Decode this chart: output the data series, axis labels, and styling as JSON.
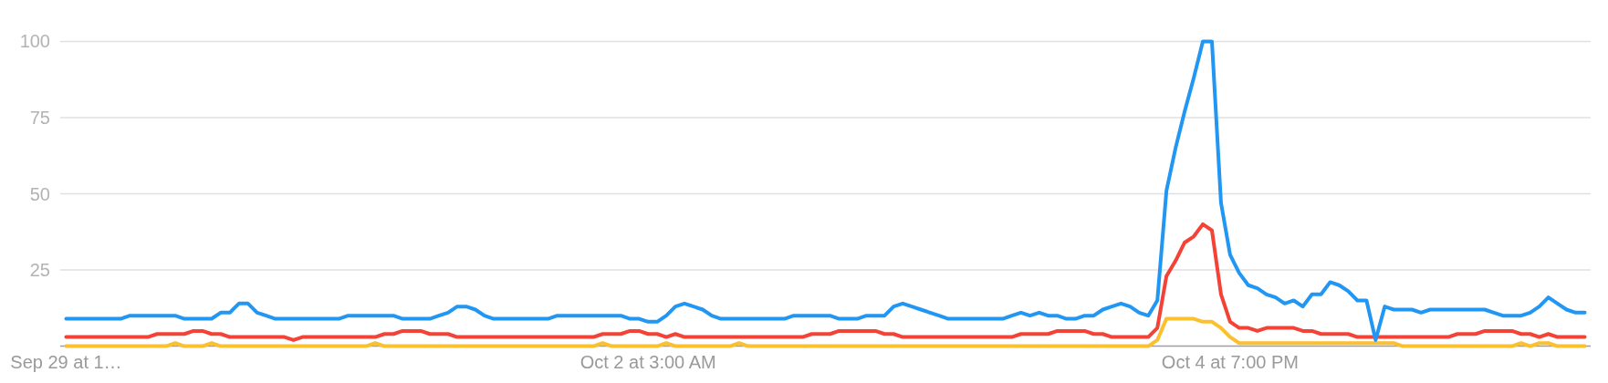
{
  "chart_data": {
    "type": "line",
    "categories": [
      "Sep 29 at 1…",
      null,
      null,
      null,
      null,
      null,
      null,
      null,
      null,
      null,
      null,
      null,
      null,
      null,
      null,
      null,
      null,
      null,
      null,
      null,
      null,
      null,
      null,
      null,
      null,
      null,
      null,
      null,
      null,
      null,
      null,
      null,
      null,
      null,
      null,
      null,
      null,
      null,
      null,
      null,
      null,
      null,
      null,
      null,
      null,
      null,
      null,
      null,
      null,
      null,
      null,
      null,
      null,
      null,
      null,
      null,
      null,
      null,
      null,
      null,
      null,
      null,
      null,
      null,
      "Oct 2 at 3:00 AM",
      null,
      null,
      null,
      null,
      null,
      null,
      null,
      null,
      null,
      null,
      null,
      null,
      null,
      null,
      null,
      null,
      null,
      null,
      null,
      null,
      null,
      null,
      null,
      null,
      null,
      null,
      null,
      null,
      null,
      null,
      null,
      null,
      null,
      null,
      null,
      null,
      null,
      null,
      null,
      null,
      null,
      null,
      null,
      null,
      null,
      null,
      null,
      null,
      null,
      null,
      null,
      null,
      null,
      null,
      null,
      null,
      null,
      null,
      null,
      null,
      null,
      null,
      null,
      "Oct 4 at 7:00 PM",
      null,
      null,
      null,
      null,
      null,
      null,
      null,
      null,
      null,
      null,
      null,
      null,
      null,
      null,
      null,
      null,
      null,
      null,
      null,
      null,
      null,
      null,
      null,
      null,
      null,
      null,
      null,
      null,
      null,
      null,
      null,
      null,
      null,
      null,
      null,
      null,
      null,
      null,
      null
    ],
    "series": [
      {
        "color": "#2196f3",
        "values": [
          9,
          9,
          9,
          9,
          9,
          9,
          9,
          10,
          10,
          10,
          10,
          10,
          10,
          9,
          9,
          9,
          9,
          11,
          11,
          14,
          14,
          11,
          10,
          9,
          9,
          9,
          9,
          9,
          9,
          9,
          9,
          10,
          10,
          10,
          10,
          10,
          10,
          9,
          9,
          9,
          9,
          10,
          11,
          13,
          13,
          12,
          10,
          9,
          9,
          9,
          9,
          9,
          9,
          9,
          10,
          10,
          10,
          10,
          10,
          10,
          10,
          10,
          9,
          9,
          8,
          8,
          10,
          13,
          14,
          13,
          12,
          10,
          9,
          9,
          9,
          9,
          9,
          9,
          9,
          9,
          10,
          10,
          10,
          10,
          10,
          9,
          9,
          9,
          10,
          10,
          10,
          13,
          14,
          13,
          12,
          11,
          10,
          9,
          9,
          9,
          9,
          9,
          9,
          9,
          10,
          11,
          10,
          11,
          10,
          10,
          9,
          9,
          10,
          10,
          12,
          13,
          14,
          13,
          11,
          10,
          15,
          51,
          65,
          77,
          88,
          100,
          100,
          47,
          30,
          24,
          20,
          19,
          17,
          16,
          14,
          15,
          13,
          17,
          17,
          21,
          20,
          18,
          15,
          15,
          2,
          13,
          12,
          12,
          12,
          11,
          12,
          12,
          12,
          12,
          12,
          12,
          12,
          11,
          10,
          10,
          10,
          11,
          13,
          16,
          14,
          12,
          11,
          11
        ]
      },
      {
        "color": "#f44336",
        "values": [
          3,
          3,
          3,
          3,
          3,
          3,
          3,
          3,
          3,
          3,
          4,
          4,
          4,
          4,
          5,
          5,
          4,
          4,
          3,
          3,
          3,
          3,
          3,
          3,
          3,
          2,
          3,
          3,
          3,
          3,
          3,
          3,
          3,
          3,
          3,
          4,
          4,
          5,
          5,
          5,
          4,
          4,
          4,
          3,
          3,
          3,
          3,
          3,
          3,
          3,
          3,
          3,
          3,
          3,
          3,
          3,
          3,
          3,
          3,
          4,
          4,
          4,
          5,
          5,
          4,
          4,
          3,
          4,
          3,
          3,
          3,
          3,
          3,
          3,
          3,
          3,
          3,
          3,
          3,
          3,
          3,
          3,
          4,
          4,
          4,
          5,
          5,
          5,
          5,
          5,
          4,
          4,
          3,
          3,
          3,
          3,
          3,
          3,
          3,
          3,
          3,
          3,
          3,
          3,
          3,
          4,
          4,
          4,
          4,
          5,
          5,
          5,
          5,
          4,
          4,
          3,
          3,
          3,
          3,
          3,
          6,
          23,
          28,
          34,
          36,
          40,
          38,
          17,
          8,
          6,
          6,
          5,
          6,
          6,
          6,
          6,
          5,
          5,
          4,
          4,
          4,
          4,
          3,
          3,
          3,
          3,
          3,
          3,
          3,
          3,
          3,
          3,
          3,
          4,
          4,
          4,
          5,
          5,
          5,
          5,
          4,
          4,
          3,
          4,
          3,
          3,
          3,
          3
        ]
      },
      {
        "color": "#fbc02d",
        "values": [
          0,
          0,
          0,
          0,
          0,
          0,
          0,
          0,
          0,
          0,
          0,
          0,
          1,
          0,
          0,
          0,
          1,
          0,
          0,
          0,
          0,
          0,
          0,
          0,
          0,
          0,
          0,
          0,
          0,
          0,
          0,
          0,
          0,
          0,
          1,
          0,
          0,
          0,
          0,
          0,
          0,
          0,
          0,
          0,
          0,
          0,
          0,
          0,
          0,
          0,
          0,
          0,
          0,
          0,
          0,
          0,
          0,
          0,
          0,
          1,
          0,
          0,
          0,
          0,
          0,
          0,
          1,
          0,
          0,
          0,
          0,
          0,
          0,
          0,
          1,
          0,
          0,
          0,
          0,
          0,
          0,
          0,
          0,
          0,
          0,
          0,
          0,
          0,
          0,
          0,
          0,
          0,
          0,
          0,
          0,
          0,
          0,
          0,
          0,
          0,
          0,
          0,
          0,
          0,
          0,
          0,
          0,
          0,
          0,
          0,
          0,
          0,
          0,
          0,
          0,
          0,
          0,
          0,
          0,
          0,
          2,
          9,
          9,
          9,
          9,
          8,
          8,
          6,
          3,
          1,
          1,
          1,
          1,
          1,
          1,
          1,
          1,
          1,
          1,
          1,
          1,
          1,
          1,
          1,
          1,
          1,
          1,
          0,
          0,
          0,
          0,
          0,
          0,
          0,
          0,
          0,
          0,
          0,
          0,
          0,
          1,
          0,
          1,
          1,
          0,
          0,
          0,
          0
        ]
      }
    ],
    "ylim": [
      0,
      100
    ],
    "yticks": [
      25,
      50,
      75,
      100
    ],
    "grid": "y"
  }
}
